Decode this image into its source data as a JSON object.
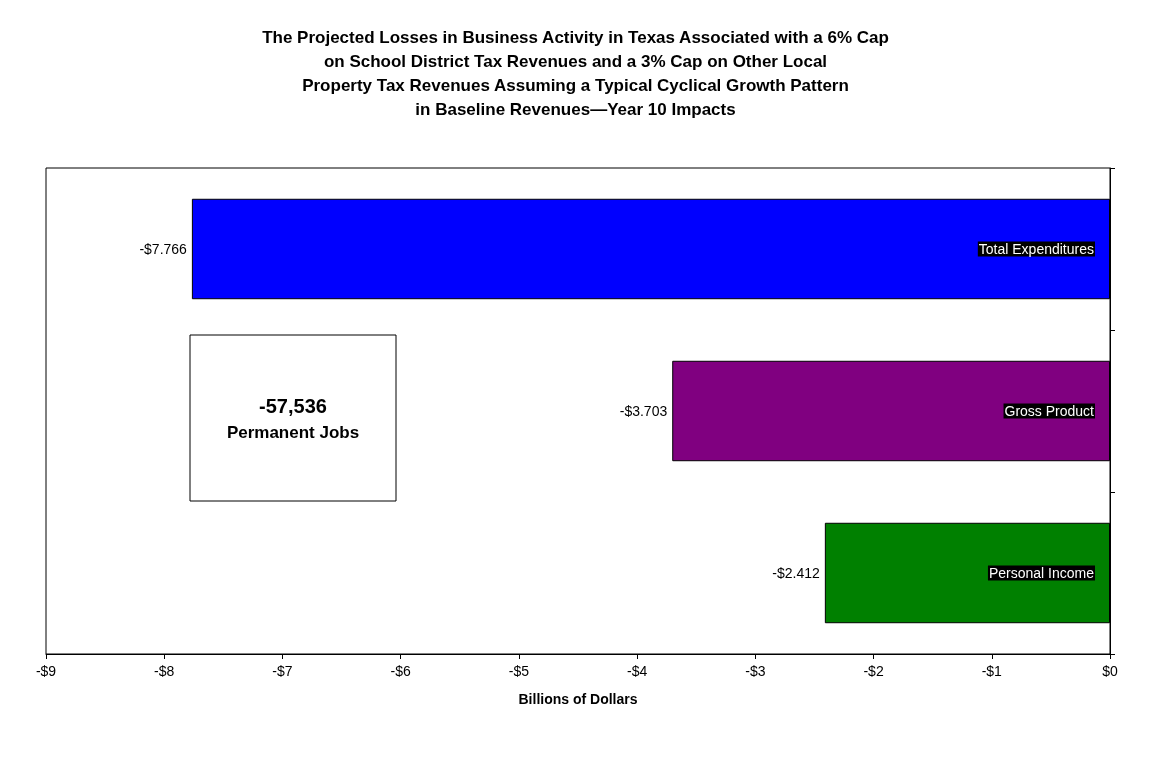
{
  "chart_data": {
    "type": "bar",
    "orientation": "horizontal",
    "title": "The Projected Losses in Business Activity in Texas Associated with a 6% Cap\non School District Tax Revenues and a 3% Cap on Other Local\nProperty Tax Revenues Assuming a Typical Cyclical Growth Pattern\nin Baseline Revenues—Year 10 Impacts",
    "xlabel": "Billions of Dollars",
    "categories": [
      "Total Expenditures",
      "Gross Product",
      "Personal Income"
    ],
    "values": [
      -7.766,
      -3.703,
      -2.412
    ],
    "colors": [
      "#0000ff",
      "#800080",
      "#008000"
    ],
    "value_labels": [
      "-$7.766",
      "-$3.703",
      "-$2.412"
    ],
    "xlim": [
      -9,
      0
    ],
    "xticks": [
      {
        "value": -9,
        "label": "-$9"
      },
      {
        "value": -8,
        "label": "-$8"
      },
      {
        "value": -7,
        "label": "-$7"
      },
      {
        "value": -6,
        "label": "-$6"
      },
      {
        "value": -5,
        "label": "-$5"
      },
      {
        "value": -4,
        "label": "-$4"
      },
      {
        "value": -3,
        "label": "-$3"
      },
      {
        "value": -2,
        "label": "-$2"
      },
      {
        "value": -1,
        "label": "-$1"
      },
      {
        "value": 0,
        "label": "$0"
      }
    ],
    "grid": false,
    "annotations": [
      "-57,536 Permanent Jobs"
    ]
  }
}
